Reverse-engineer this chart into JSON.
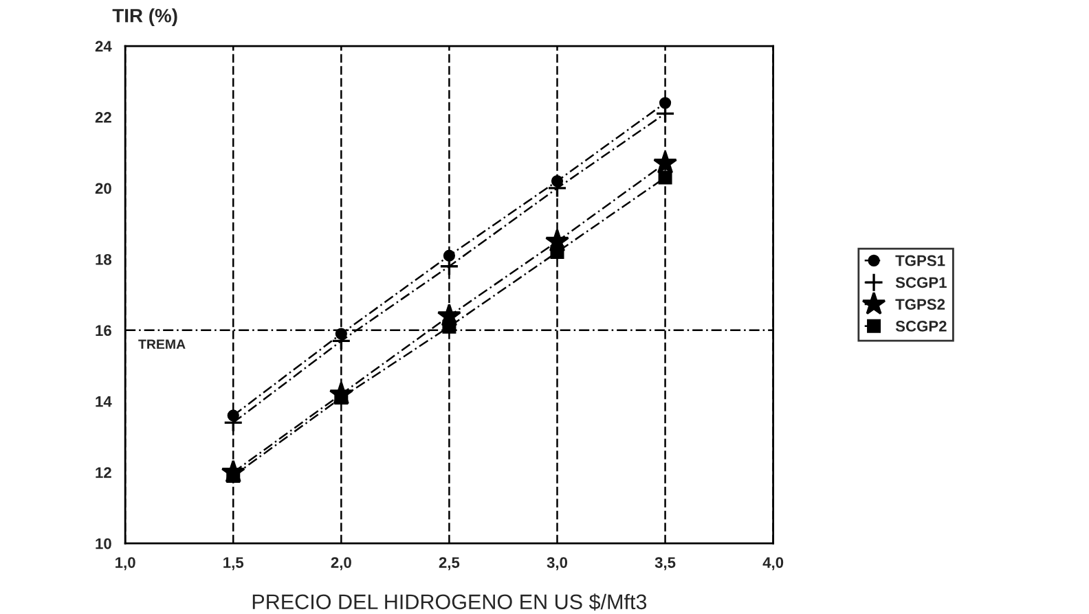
{
  "chart_data": {
    "type": "line",
    "ylabel": "TIR (%)",
    "xlabel": "PRECIO DEL HIDROGENO EN US $/Mft3",
    "x": [
      1.5,
      2.0,
      2.5,
      3.0,
      3.5
    ],
    "series": [
      {
        "name": "TGPS1",
        "color": "#000000",
        "marker": "circle",
        "values": [
          13.6,
          15.9,
          18.1,
          20.2,
          22.4
        ]
      },
      {
        "name": "SCGP1",
        "color": "#000000",
        "marker": "cross",
        "values": [
          13.4,
          15.7,
          17.8,
          20.0,
          22.1
        ]
      },
      {
        "name": "TGPS2",
        "color": "#000000",
        "marker": "star",
        "values": [
          12.0,
          14.2,
          16.4,
          18.5,
          20.7
        ]
      },
      {
        "name": "SCGP2",
        "color": "#000000",
        "marker": "square",
        "values": [
          11.9,
          14.1,
          16.1,
          18.2,
          20.3
        ]
      }
    ],
    "line_style": "dashed",
    "xlim": [
      1.0,
      4.0
    ],
    "xticks": [
      {
        "value": 1.0,
        "label": "1,0"
      },
      {
        "value": 1.5,
        "label": "1,5"
      },
      {
        "value": 2.0,
        "label": "2,0"
      },
      {
        "value": 2.5,
        "label": "2,5"
      },
      {
        "value": 3.0,
        "label": "3,0"
      },
      {
        "value": 3.5,
        "label": "3,5"
      },
      {
        "value": 4.0,
        "label": "4,0"
      }
    ],
    "ylim": [
      10,
      24
    ],
    "yticks": [
      10,
      12,
      14,
      16,
      18,
      20,
      22,
      24
    ],
    "ref_lines": [
      {
        "axis": "y",
        "value": 16,
        "label": "TREMA",
        "color": "#000000",
        "line_style": "dashed"
      }
    ],
    "grid": "x",
    "legend": "right"
  }
}
